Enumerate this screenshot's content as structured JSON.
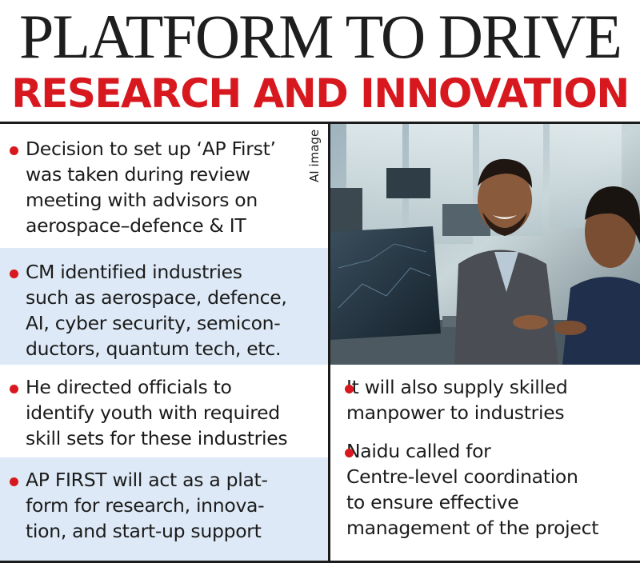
{
  "header": {
    "title": "PLATFORM TO DRIVE",
    "subtitle": "RESEARCH AND INNOVATION"
  },
  "photo_credit": "AI image",
  "bullets": [
    {
      "lines": [
        "Decision to set up ‘AP First’",
        "was taken during review",
        "meeting with advisors on",
        "aerospace–defence & IT"
      ]
    },
    {
      "lines": [
        "CM identified industries",
        "such as aerospace, defence,",
        "AI, cyber security, semicon-",
        "ductors, quantum tech, etc."
      ]
    },
    {
      "lines": [
        "He directed officials to",
        "identify youth with required",
        "skill sets for these industries"
      ]
    },
    {
      "lines": [
        "AP FIRST will act as a plat-",
        "form for research, innova-",
        "tion, and start-up support"
      ]
    },
    {
      "lines": [
        "It will also supply skilled",
        "manpower to industries"
      ]
    },
    {
      "lines": [
        "Naidu called for",
        "Centre-level coordination",
        "to ensure effective",
        "management of the project"
      ]
    }
  ],
  "colors": {
    "title": "#1e1e1e",
    "subtitle_red": "#d7191f",
    "bullet_red": "#d7191f",
    "panel_blue": "#dde9f6",
    "rule": "#1b1b1b"
  },
  "icons": [
    "red-dot-bullet-icon"
  ]
}
